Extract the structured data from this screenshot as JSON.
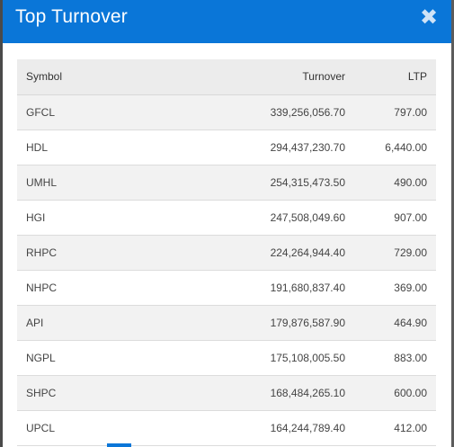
{
  "modal": {
    "title": "Top Turnover",
    "close_symbol": "✖"
  },
  "table": {
    "headers": {
      "symbol": "Symbol",
      "turnover": "Turnover",
      "ltp": "LTP"
    },
    "rows": [
      {
        "symbol": "GFCL",
        "turnover": "339,256,056.70",
        "ltp": "797.00"
      },
      {
        "symbol": "HDL",
        "turnover": "294,437,230.70",
        "ltp": "6,440.00"
      },
      {
        "symbol": "UMHL",
        "turnover": "254,315,473.50",
        "ltp": "490.00"
      },
      {
        "symbol": "HGI",
        "turnover": "247,508,049.60",
        "ltp": "907.00"
      },
      {
        "symbol": "RHPC",
        "turnover": "224,264,944.40",
        "ltp": "729.00"
      },
      {
        "symbol": "NHPC",
        "turnover": "191,680,837.40",
        "ltp": "369.00"
      },
      {
        "symbol": "API",
        "turnover": "179,876,587.90",
        "ltp": "464.90"
      },
      {
        "symbol": "NGPL",
        "turnover": "175,108,005.50",
        "ltp": "883.00"
      },
      {
        "symbol": "SHPC",
        "turnover": "168,484,265.10",
        "ltp": "600.00"
      },
      {
        "symbol": "UPCL",
        "turnover": "164,244,789.40",
        "ltp": "412.00"
      }
    ]
  },
  "colors": {
    "header_bg": "#0a76d8",
    "row_odd": "#f2f2f2",
    "row_even": "#ffffff"
  }
}
